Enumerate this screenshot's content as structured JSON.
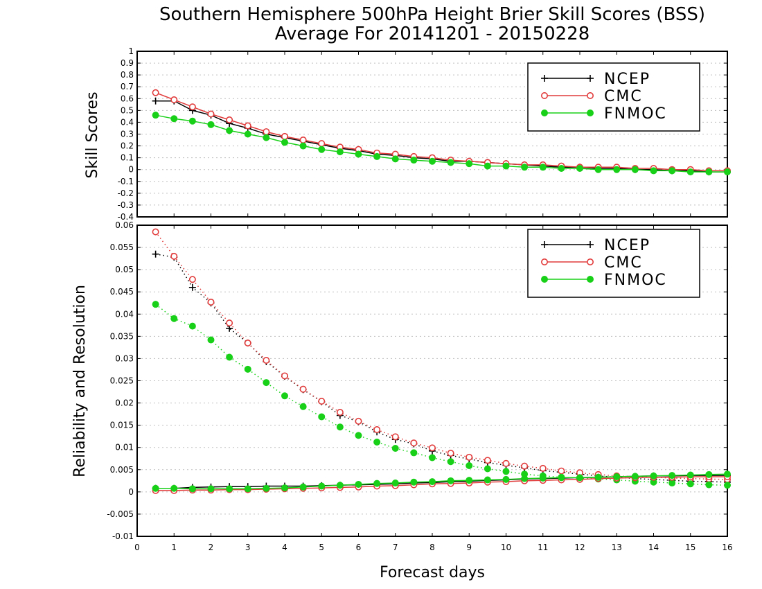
{
  "title_line1": "Southern Hemisphere 500hPa Height Brier Skill Scores (BSS)",
  "title_line2": "Average For 20141201 - 20150228",
  "xlabel": "Forecast days",
  "colors": {
    "NCEP": "#000000",
    "CMC": "#e23b3b",
    "FNMOC": "#18d018",
    "grid": "#bfbfbf"
  },
  "chart_data": [
    {
      "type": "line",
      "ylabel": "Skill Scores",
      "ylim": [
        -0.4,
        1
      ],
      "xlim": [
        0,
        16
      ],
      "xticks": [
        0,
        1,
        2,
        3,
        4,
        5,
        6,
        7,
        8,
        9,
        10,
        11,
        12,
        13,
        14,
        15,
        16
      ],
      "yticks": [
        "-0.4",
        "-0.3",
        "-0.2",
        "-0.1",
        "0",
        "0.1",
        "0.2",
        "0.3",
        "0.4",
        "0.5",
        "0.6",
        "0.7",
        "0.8",
        "0.9",
        "1"
      ],
      "grid": true,
      "legend_position": "top-right",
      "legend": [
        "NCEP",
        "CMC",
        "FNMOC"
      ],
      "x": [
        0.5,
        1,
        1.5,
        2,
        2.5,
        3,
        3.5,
        4,
        4.5,
        5,
        5.5,
        6,
        6.5,
        7,
        7.5,
        8,
        8.5,
        9,
        9.5,
        10,
        10.5,
        11,
        11.5,
        12,
        12.5,
        13,
        13.5,
        14,
        14.5,
        15,
        15.5,
        16
      ],
      "series": [
        {
          "name": "NCEP",
          "style": "solid",
          "marker": "plus",
          "values": [
            0.58,
            0.58,
            0.5,
            0.46,
            0.39,
            0.35,
            0.3,
            0.27,
            0.24,
            0.21,
            0.18,
            0.16,
            0.13,
            0.12,
            0.1,
            0.09,
            0.07,
            0.07,
            0.06,
            0.05,
            0.04,
            0.03,
            0.02,
            0.02,
            0.01,
            0.01,
            0.0,
            0.0,
            -0.01,
            -0.01,
            -0.02,
            -0.02
          ]
        },
        {
          "name": "CMC",
          "style": "solid",
          "marker": "open-circle",
          "values": [
            0.65,
            0.59,
            0.53,
            0.47,
            0.42,
            0.37,
            0.32,
            0.28,
            0.25,
            0.22,
            0.19,
            0.17,
            0.14,
            0.13,
            0.11,
            0.1,
            0.08,
            0.07,
            0.06,
            0.05,
            0.04,
            0.04,
            0.03,
            0.02,
            0.02,
            0.02,
            0.01,
            0.01,
            0.0,
            0.0,
            -0.01,
            -0.01
          ]
        },
        {
          "name": "FNMOC",
          "style": "solid",
          "marker": "filled-circle",
          "values": [
            0.46,
            0.43,
            0.41,
            0.38,
            0.33,
            0.3,
            0.27,
            0.23,
            0.2,
            0.17,
            0.15,
            0.13,
            0.11,
            0.09,
            0.08,
            0.07,
            0.06,
            0.05,
            0.03,
            0.03,
            0.02,
            0.02,
            0.01,
            0.01,
            0.0,
            0.0,
            0.0,
            -0.01,
            -0.01,
            -0.02,
            -0.02,
            -0.02
          ]
        }
      ]
    },
    {
      "type": "line",
      "ylabel": "Reliability and Resolution",
      "ylim": [
        -0.01,
        0.06
      ],
      "xlim": [
        0,
        16
      ],
      "xticks": [
        0,
        1,
        2,
        3,
        4,
        5,
        6,
        7,
        8,
        9,
        10,
        11,
        12,
        13,
        14,
        15,
        16
      ],
      "yticks": [
        "-0.01",
        "-0.005",
        "0",
        "0.005",
        "0.01",
        "0.015",
        "0.02",
        "0.025",
        "0.03",
        "0.035",
        "0.04",
        "0.045",
        "0.05",
        "0.055",
        "0.06"
      ],
      "grid": true,
      "legend_position": "top-right",
      "legend": [
        "NCEP",
        "CMC",
        "FNMOC"
      ],
      "x": [
        0.5,
        1,
        1.5,
        2,
        2.5,
        3,
        3.5,
        4,
        4.5,
        5,
        5.5,
        6,
        6.5,
        7,
        7.5,
        8,
        8.5,
        9,
        9.5,
        10,
        10.5,
        11,
        11.5,
        12,
        12.5,
        13,
        13.5,
        14,
        14.5,
        15,
        15.5,
        16
      ],
      "series": [
        {
          "name": "NCEP",
          "style": "dotted",
          "marker": "plus",
          "values": [
            0.0535,
            0.0528,
            0.046,
            0.0425,
            0.0368,
            0.0335,
            0.0293,
            0.026,
            0.023,
            0.0203,
            0.0172,
            0.0158,
            0.0135,
            0.0118,
            0.0108,
            0.0092,
            0.0082,
            0.0074,
            0.0066,
            0.006,
            0.0054,
            0.0048,
            0.0044,
            0.004,
            0.0036,
            0.0033,
            0.003,
            0.0028,
            0.0026,
            0.0024,
            0.0023,
            0.0022
          ]
        },
        {
          "name": "CMC",
          "style": "dotted",
          "marker": "open-circle",
          "values": [
            0.0585,
            0.053,
            0.0478,
            0.0427,
            0.038,
            0.0335,
            0.0296,
            0.0261,
            0.0231,
            0.0204,
            0.0179,
            0.0159,
            0.014,
            0.0124,
            0.011,
            0.0099,
            0.0087,
            0.0078,
            0.0071,
            0.0064,
            0.0058,
            0.0053,
            0.0047,
            0.0043,
            0.0039,
            0.0036,
            0.0034,
            0.0033,
            0.0031,
            0.003,
            0.0029,
            0.0028
          ]
        },
        {
          "name": "FNMOC",
          "style": "dotted",
          "marker": "filled-circle",
          "values": [
            0.0422,
            0.039,
            0.0373,
            0.0342,
            0.0303,
            0.0276,
            0.0246,
            0.0216,
            0.0192,
            0.0169,
            0.0146,
            0.0127,
            0.0112,
            0.0098,
            0.0088,
            0.0077,
            0.0068,
            0.0059,
            0.0052,
            0.0046,
            0.004,
            0.0036,
            0.0033,
            0.0031,
            0.0029,
            0.0027,
            0.0024,
            0.0022,
            0.002,
            0.0018,
            0.0016,
            0.0015
          ]
        },
        {
          "name": "NCEP",
          "style": "solid",
          "marker": "plus",
          "values": [
            0.0008,
            0.0008,
            0.001,
            0.0011,
            0.0012,
            0.0012,
            0.0013,
            0.0013,
            0.0013,
            0.0014,
            0.0015,
            0.0016,
            0.0017,
            0.0018,
            0.002,
            0.0021,
            0.0023,
            0.0024,
            0.0026,
            0.0027,
            0.0029,
            0.003,
            0.0031,
            0.0032,
            0.0033,
            0.0034,
            0.0035,
            0.0036,
            0.0036,
            0.0037,
            0.0037,
            0.0037
          ]
        },
        {
          "name": "CMC",
          "style": "solid",
          "marker": "open-circle",
          "values": [
            0.0003,
            0.0003,
            0.0004,
            0.0004,
            0.0005,
            0.0005,
            0.0006,
            0.0007,
            0.0008,
            0.0009,
            0.001,
            0.0011,
            0.0013,
            0.0014,
            0.0016,
            0.0018,
            0.0019,
            0.002,
            0.0022,
            0.0023,
            0.0025,
            0.0026,
            0.0027,
            0.0028,
            0.003,
            0.0031,
            0.0032,
            0.0033,
            0.0033,
            0.0034,
            0.0034,
            0.0034
          ]
        },
        {
          "name": "FNMOC",
          "style": "solid",
          "marker": "filled-circle",
          "values": [
            0.0008,
            0.0008,
            0.0007,
            0.0007,
            0.0007,
            0.0007,
            0.0008,
            0.0009,
            0.0011,
            0.0013,
            0.0015,
            0.0017,
            0.0019,
            0.002,
            0.0022,
            0.0023,
            0.0025,
            0.0026,
            0.0027,
            0.0028,
            0.003,
            0.0031,
            0.0032,
            0.0032,
            0.0033,
            0.0034,
            0.0035,
            0.0036,
            0.0037,
            0.0038,
            0.0039,
            0.004
          ]
        }
      ]
    }
  ]
}
